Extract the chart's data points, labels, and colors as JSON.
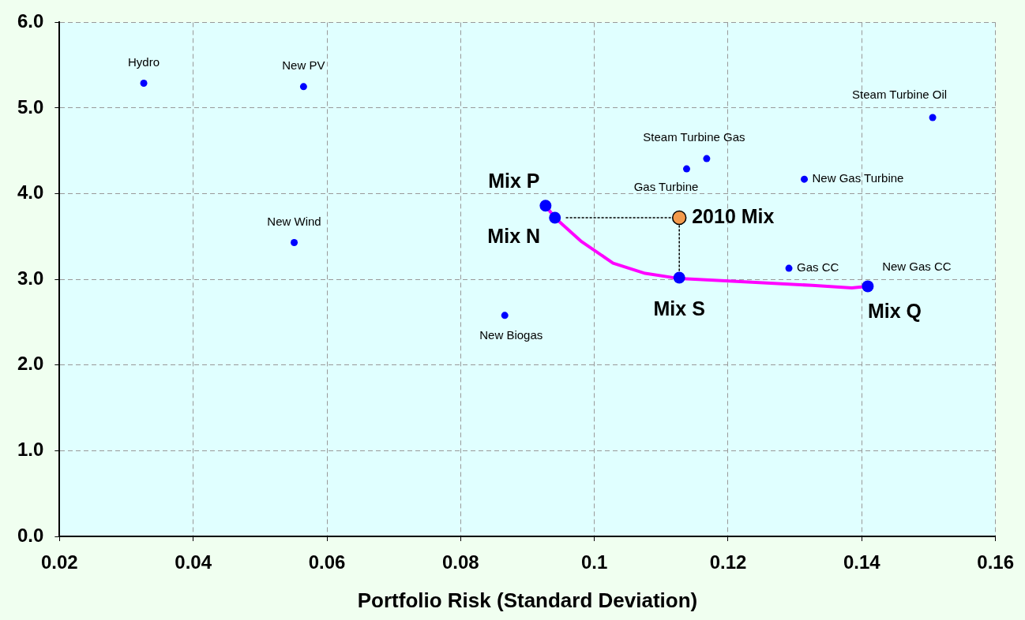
{
  "chart_data": {
    "type": "scatter",
    "xlabel": "Portfolio Risk (Standard Deviation)",
    "xlim": [
      0.02,
      0.16
    ],
    "xticks": [
      0.02,
      0.04,
      0.06,
      0.08,
      0.1,
      0.12,
      0.14,
      0.16
    ],
    "ylim": [
      0,
      6
    ],
    "yticks": [
      {
        "value": 0,
        "label": "0.0"
      },
      {
        "value": 1,
        "label": "1.0"
      },
      {
        "value": 2,
        "label": "2.0"
      },
      {
        "value": 3,
        "label": "3.0"
      },
      {
        "value": 4,
        "label": "4.0"
      },
      {
        "value": 5,
        "label": "5.0"
      },
      {
        "value": 6,
        "label": "6.0"
      }
    ],
    "grid": true,
    "legend": false,
    "series": [
      {
        "type": "scatter",
        "marker": "circle",
        "color": "#0000ff",
        "x": [
          0.0326,
          0.0565,
          0.0551,
          0.0866,
          0.1138,
          0.1168,
          0.1314,
          0.1506,
          0.1291
        ],
        "values": [
          5.29,
          5.25,
          3.43,
          2.58,
          4.29,
          4.41,
          4.17,
          4.89,
          3.13
        ]
      },
      {
        "type": "line",
        "marker": "none",
        "line_style": "solid",
        "color": "#ff00ff",
        "x": [
          0.0927,
          0.0941,
          0.0981,
          0.1028,
          0.1076,
          0.1127,
          0.123,
          0.1326,
          0.1385,
          0.1409
        ],
        "values": [
          3.86,
          3.72,
          3.44,
          3.19,
          3.07,
          3.01,
          2.97,
          2.93,
          2.9,
          2.92
        ]
      },
      {
        "type": "scatter",
        "marker": "circle",
        "color": "#0000ff",
        "x": [
          0.0927,
          0.0941,
          0.1127,
          0.1409
        ],
        "values": [
          3.86,
          3.72,
          3.02,
          2.92
        ]
      },
      {
        "type": "scatter",
        "marker": "circle",
        "color": "#f39a4c",
        "x": [
          0.1127
        ],
        "values": [
          3.72
        ]
      },
      {
        "type": "line",
        "marker": "none",
        "line_style": "dotted",
        "color": "#000000",
        "x": [
          0.0958,
          0.1127
        ],
        "values": [
          3.72,
          3.72
        ]
      },
      {
        "type": "line",
        "marker": "none",
        "line_style": "dotted",
        "color": "#000000",
        "x": [
          0.1127,
          0.1127
        ],
        "values": [
          3.72,
          3.02
        ]
      }
    ],
    "annotations": [
      {
        "text": "Hydro",
        "x": 0.0326,
        "y": 5.29
      },
      {
        "text": "New PV",
        "x": 0.0565,
        "y": 5.25
      },
      {
        "text": "New Wind",
        "x": 0.0551,
        "y": 3.43
      },
      {
        "text": "New Biogas",
        "x": 0.0866,
        "y": 2.58
      },
      {
        "text": "Gas Turbine",
        "x": 0.1138,
        "y": 4.29
      },
      {
        "text": "Steam Turbine Gas",
        "x": 0.1168,
        "y": 4.41
      },
      {
        "text": "New Gas Turbine",
        "x": 0.1314,
        "y": 4.17
      },
      {
        "text": "Steam Turbine Oil",
        "x": 0.1506,
        "y": 4.89
      },
      {
        "text": "Gas CC",
        "x": 0.1291,
        "y": 3.13
      },
      {
        "text": "New Gas CC",
        "x": 0.1409,
        "y": 2.92
      },
      {
        "text": "Mix P",
        "x": 0.0927,
        "y": 3.86
      },
      {
        "text": "Mix N",
        "x": 0.0941,
        "y": 3.72
      },
      {
        "text": "Mix S",
        "x": 0.1127,
        "y": 3.02
      },
      {
        "text": "Mix Q",
        "x": 0.1409,
        "y": 2.92
      },
      {
        "text": "2010 Mix",
        "x": 0.1127,
        "y": 3.72
      }
    ]
  }
}
